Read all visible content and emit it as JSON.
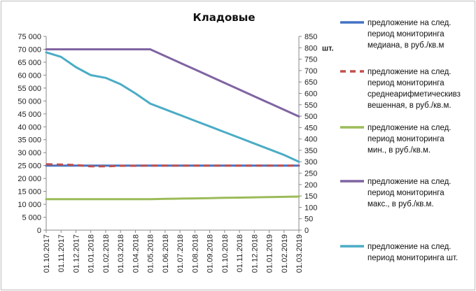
{
  "chart_data": {
    "type": "line",
    "title": "Кладовые",
    "y2_unit_label": "шт.",
    "categories": [
      "01.10.2017",
      "01.11.2017",
      "01.12.2017",
      "01.01.2018",
      "01.02.2018",
      "01.03.2018",
      "01.04.2018",
      "01.05.2018",
      "01.06.2018",
      "01.07.2018",
      "01.08.2018",
      "01.09.2018",
      "01.10.2018",
      "01.11.2018",
      "01.12.2018",
      "01.01.2019",
      "01.02.2019",
      "01.03.2019"
    ],
    "ylim": [
      0,
      75000
    ],
    "y_ticks": [
      "0",
      "5 000",
      "10 000",
      "15 000",
      "20 000",
      "25 000",
      "30 000",
      "35 000",
      "40 000",
      "45 000",
      "50 000",
      "55 000",
      "60 000",
      "65 000",
      "70 000",
      "75 000"
    ],
    "y2lim": [
      0,
      850
    ],
    "y2_ticks": [
      "0",
      "50",
      "100",
      "150",
      "200",
      "250",
      "300",
      "350",
      "400",
      "450",
      "500",
      "550",
      "600",
      "650",
      "700",
      "750",
      "800",
      "850"
    ],
    "grid": false,
    "legend_position": "right",
    "series": [
      {
        "name": "предложение на след. период мониторинга медиана, в руб./кв.м",
        "lines": [
          "предложение на след.",
          "период мониторинга",
          "медиана, в руб./кв.м"
        ],
        "axis": "left",
        "color": "#4472C4",
        "dash": false,
        "values": [
          25000,
          25000,
          25000,
          25000,
          25000,
          25000,
          25000,
          25000,
          25000,
          25000,
          25000,
          25000,
          25000,
          25000,
          25000,
          25000,
          25000,
          25000
        ]
      },
      {
        "name": "предложение на след. период мониторинга среднеарифметическивз вешенная, в руб./кв.м.",
        "lines": [
          "предложение на след.",
          "период мониторинга",
          "среднеарифметическивз",
          "вешенная, в руб./кв.м."
        ],
        "axis": "left",
        "color": "#C0504D",
        "dash": true,
        "values": [
          25500,
          25400,
          25200,
          24700,
          24700,
          24900,
          24900,
          25000,
          25000,
          25000,
          25000,
          25000,
          25000,
          25000,
          25000,
          25000,
          25000,
          25000
        ]
      },
      {
        "name": "предложение на след. период мониторинга мин., в руб./кв.м.",
        "lines": [
          "предложение на след.",
          "период мониторинга",
          "мин., в руб./кв.м."
        ],
        "axis": "left",
        "color": "#9BBB59",
        "dash": false,
        "values": [
          12000,
          12000,
          12000,
          12000,
          12000,
          12000,
          12000,
          12000,
          12100,
          12200,
          12300,
          12400,
          12500,
          12600,
          12700,
          12800,
          12900,
          13000
        ]
      },
      {
        "name": "предложение на след. период мониторинга макс., в руб./кв.м.",
        "lines": [
          "предложение на след.",
          "период мониторинга",
          "макс., в руб./кв.м."
        ],
        "axis": "left",
        "color": "#8064A2",
        "dash": false,
        "values": [
          70000,
          70000,
          70000,
          70000,
          70000,
          70000,
          70000,
          70000,
          67400,
          64800,
          62200,
          59600,
          57000,
          54400,
          51800,
          49200,
          46600,
          44000
        ]
      },
      {
        "name": "предложение на след. период мониторинга шт.",
        "lines": [
          "предложение на след.",
          "период мониторинга шт."
        ],
        "axis": "right",
        "color": "#4BACC6",
        "dash": false,
        "values": [
          780,
          760,
          715,
          680,
          668,
          640,
          600,
          555,
          530,
          505,
          480,
          455,
          430,
          405,
          380,
          355,
          330,
          300
        ]
      }
    ]
  }
}
